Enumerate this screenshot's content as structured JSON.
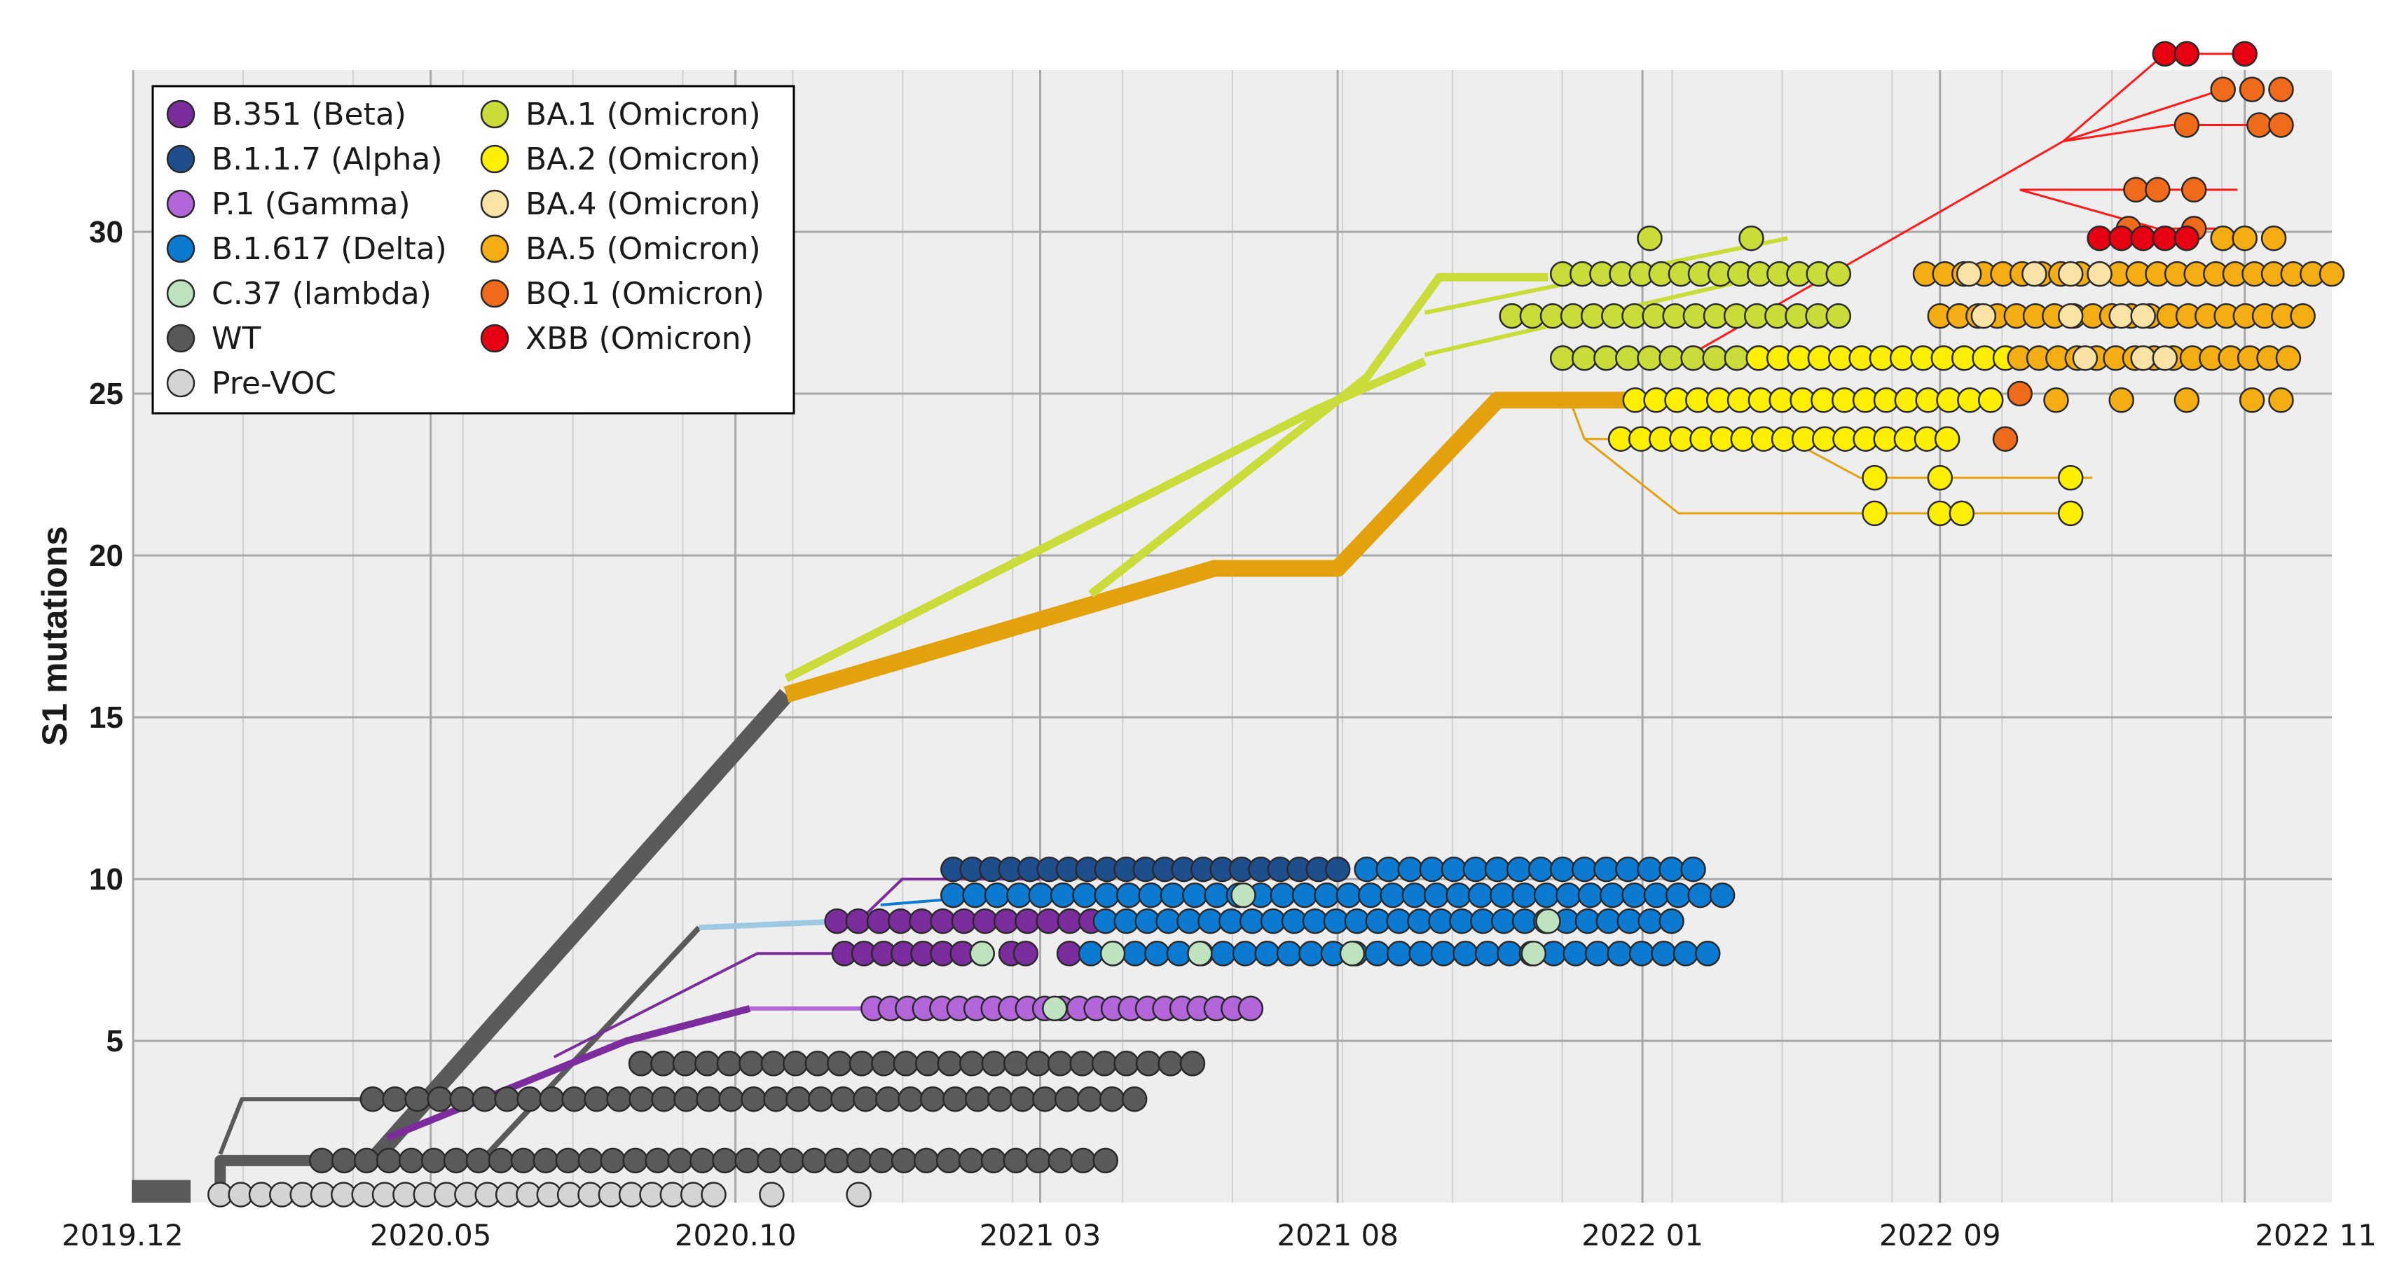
{
  "chart_data": {
    "type": "scatter",
    "title": "",
    "xlabel": "",
    "ylabel": "S1 mutations",
    "xlim": [
      2019.92,
      2022.95
    ],
    "ylim": [
      0,
      35
    ],
    "grid": true,
    "xticks": [
      {
        "label": "2019.12",
        "value": 2019.92
      },
      {
        "label": "2020.05",
        "value": 2020.33
      },
      {
        "label": "2020.10",
        "value": 2020.75
      },
      {
        "label": "2021 03",
        "value": 2021.17
      },
      {
        "label": "2021 08",
        "value": 2021.58
      },
      {
        "label": "2022 01",
        "value": 2022.0
      },
      {
        "label": "2022 09",
        "value": 2022.41
      },
      {
        "label": "2022 11",
        "value": 2022.83
      }
    ],
    "yticks": [
      5,
      10,
      15,
      20,
      25,
      30
    ],
    "legend_position": "top-left",
    "legend": [
      {
        "name": "B.351 (Beta)",
        "color": "#7b2d9e"
      },
      {
        "name": "B.1.1.7 (Alpha)",
        "color": "#1f4e8c"
      },
      {
        "name": "P.1 (Gamma)",
        "color": "#b366d9"
      },
      {
        "name": "B.1.617 (Delta)",
        "color": "#0d7ad1"
      },
      {
        "name": "C.37 (lambda)",
        "color": "#bfe3bf"
      },
      {
        "name": "WT",
        "color": "#595959"
      },
      {
        "name": "Pre-VOC",
        "color": "#d4d4d4"
      },
      {
        "name": "BA.1 (Omicron)",
        "color": "#c9dc3a"
      },
      {
        "name": "BA.2 (Omicron)",
        "color": "#ffef00"
      },
      {
        "name": "BA.4 (Omicron)",
        "color": "#fbe3a6"
      },
      {
        "name": "BA.5 (Omicron)",
        "color": "#f5ad14"
      },
      {
        "name": "BQ.1 (Omicron)",
        "color": "#f06a1c"
      },
      {
        "name": "XBB (Omicron)",
        "color": "#e60012"
      }
    ],
    "lineages": [
      {
        "name": "WT trunk",
        "color": "#5a5a5a",
        "width": 16,
        "points": [
          [
            2020.04,
            0.2
          ],
          [
            2020.04,
            1.3
          ],
          [
            2020.2,
            1.3
          ]
        ]
      },
      {
        "name": "WT to Omicron",
        "color": "#5a5a5a",
        "width": 24,
        "points": [
          [
            2020.25,
            1.3
          ],
          [
            2020.82,
            15.7
          ]
        ]
      },
      {
        "name": "WT branch 3",
        "color": "#5a5a5a",
        "width": 6,
        "points": [
          [
            2020.04,
            1.5
          ],
          [
            2020.07,
            3.2
          ],
          [
            2020.25,
            3.2
          ]
        ]
      },
      {
        "name": "WT to Alpha",
        "color": "#5a5a5a",
        "width": 8,
        "points": [
          [
            2020.4,
            1.3
          ],
          [
            2020.7,
            8.5
          ]
        ]
      },
      {
        "name": "Beta stem",
        "color": "#7b2d9e",
        "width": 10,
        "points": [
          [
            2020.27,
            2.0
          ],
          [
            2020.6,
            5.0
          ],
          [
            2020.77,
            6.0
          ]
        ]
      },
      {
        "name": "Beta branch",
        "color": "#7b2d9e",
        "width": 4,
        "points": [
          [
            2020.5,
            4.5
          ],
          [
            2020.78,
            7.7
          ],
          [
            2020.94,
            7.7
          ]
        ]
      },
      {
        "name": "Gamma",
        "color": "#b366d9",
        "width": 6,
        "points": [
          [
            2020.77,
            6.0
          ],
          [
            2020.94,
            6.0
          ]
        ]
      },
      {
        "name": "Alpha lead",
        "color": "#9ecae1",
        "width": 8,
        "points": [
          [
            2020.7,
            8.5
          ],
          [
            2020.9,
            8.7
          ]
        ]
      },
      {
        "name": "Beta to Delta",
        "color": "#7b2d9e",
        "width": 4,
        "points": [
          [
            2020.92,
            8.7
          ],
          [
            2020.98,
            10.0
          ],
          [
            2021.17,
            10.0
          ]
        ]
      },
      {
        "name": "Delta lead",
        "color": "#0d7ad1",
        "width": 4,
        "points": [
          [
            2020.95,
            9.2
          ],
          [
            2021.17,
            9.6
          ]
        ]
      },
      {
        "name": "Omicron trunk (BA.2/BA.5)",
        "color": "#e4a10e",
        "width": 24,
        "points": [
          [
            2020.82,
            15.7
          ],
          [
            2021.41,
            19.6
          ],
          [
            2021.58,
            19.6
          ],
          [
            2021.8,
            24.8
          ],
          [
            2021.99,
            24.8
          ]
        ]
      },
      {
        "name": "BA.1 arm",
        "color": "#c9dc3a",
        "width": 12,
        "points": [
          [
            2020.82,
            16.2
          ],
          [
            2021.55,
            24.5
          ],
          [
            2021.7,
            26.0
          ]
        ]
      },
      {
        "name": "BA.1 arm 2",
        "color": "#c9dc3a",
        "width": 12,
        "points": [
          [
            2021.24,
            18.8
          ],
          [
            2021.62,
            25.5
          ],
          [
            2021.72,
            28.6
          ],
          [
            2021.87,
            28.6
          ]
        ]
      },
      {
        "name": "BA.1 sub 1",
        "color": "#c9dc3a",
        "width": 6,
        "points": [
          [
            2021.7,
            27.5
          ],
          [
            2022.2,
            29.8
          ]
        ]
      },
      {
        "name": "BA.1 sub 2",
        "color": "#c9dc3a",
        "width": 6,
        "points": [
          [
            2021.7,
            26.2
          ],
          [
            2022.2,
            28.8
          ]
        ]
      },
      {
        "name": "BA.2 splits",
        "color": "#e4a10e",
        "width": 3,
        "points": [
          [
            2021.9,
            24.8
          ],
          [
            2021.92,
            23.6
          ],
          [
            2022.2,
            23.6
          ],
          [
            2022.3,
            22.4
          ],
          [
            2022.62,
            22.4
          ]
        ]
      },
      {
        "name": "BA.2 split 2",
        "color": "#e4a10e",
        "width": 3,
        "points": [
          [
            2021.92,
            23.6
          ],
          [
            2022.05,
            21.3
          ],
          [
            2022.58,
            21.3
          ]
        ]
      },
      {
        "name": "XBB tree",
        "color": "#ff1a1a",
        "width": 3,
        "points": [
          [
            2022.05,
            26.0
          ],
          [
            2022.58,
            32.8
          ],
          [
            2022.8,
            34.4
          ]
        ]
      },
      {
        "name": "XBB split a",
        "color": "#ff1a1a",
        "width": 3,
        "points": [
          [
            2022.58,
            32.8
          ],
          [
            2022.72,
            35.5
          ],
          [
            2022.82,
            35.5
          ]
        ]
      },
      {
        "name": "XBB split b",
        "color": "#ff1a1a",
        "width": 3,
        "points": [
          [
            2022.58,
            32.8
          ],
          [
            2022.73,
            33.3
          ],
          [
            2022.85,
            33.3
          ]
        ]
      },
      {
        "name": "XBB split c",
        "color": "#ff1a1a",
        "width": 3,
        "points": [
          [
            2022.52,
            31.3
          ],
          [
            2022.82,
            31.3
          ]
        ]
      },
      {
        "name": "XBB split d",
        "color": "#ff1a1a",
        "width": 3,
        "points": [
          [
            2022.52,
            31.3
          ],
          [
            2022.71,
            30.1
          ],
          [
            2022.8,
            30.1
          ]
        ]
      }
    ],
    "series": [
      {
        "name": "Pre-VOC",
        "color": "#d4d4d4",
        "y": 0.25,
        "x_start": 2020.04,
        "x_end": 2020.72,
        "count": 25
      },
      {
        "name": "Pre-VOC extra",
        "color": "#d4d4d4",
        "y": 0.25,
        "x_values": [
          2020.8,
          2020.92
        ]
      },
      {
        "name": "WT",
        "color": "#5a5a5a",
        "y": 1.3,
        "x_start": 2020.18,
        "x_end": 2021.26,
        "count": 36
      },
      {
        "name": "WT",
        "color": "#5a5a5a",
        "y": 3.2,
        "x_start": 2020.25,
        "x_end": 2021.3,
        "count": 35
      },
      {
        "name": "WT",
        "color": "#5a5a5a",
        "y": 4.3,
        "x_start": 2020.62,
        "x_end": 2021.38,
        "count": 26
      },
      {
        "name": "B.351 (Beta)",
        "color": "#7b2d9e",
        "y": 8.7,
        "x_start": 2020.89,
        "x_end": 2021.24,
        "count": 13
      },
      {
        "name": "B.351 (Beta)",
        "color": "#7b2d9e",
        "y": 7.7,
        "x_start": 2020.9,
        "x_end": 2021.09,
        "count": 8
      },
      {
        "name": "B.351 (Beta)",
        "color": "#7b2d9e",
        "y": 7.7,
        "x_values": [
          2021.13,
          2021.15,
          2021.21
        ]
      },
      {
        "name": "P.1 (Gamma)",
        "color": "#b366d9",
        "y": 6.0,
        "x_start": 2020.94,
        "x_end": 2021.46,
        "count": 23
      },
      {
        "name": "B.1.1.7 (Alpha)",
        "color": "#1f4e8c",
        "y": 10.3,
        "x_start": 2021.05,
        "x_end": 2021.58,
        "count": 21
      },
      {
        "name": "B.1.617 (Delta)",
        "color": "#0d7ad1",
        "y": 9.5,
        "x_start": 2021.05,
        "x_end": 2022.11,
        "count": 36
      },
      {
        "name": "B.1.617 (Delta)",
        "color": "#0d7ad1",
        "y": 10.3,
        "x_start": 2021.62,
        "x_end": 2022.07,
        "count": 16
      },
      {
        "name": "B.1.617 (Delta)",
        "color": "#0d7ad1",
        "y": 8.7,
        "x_start": 2021.26,
        "x_end": 2022.04,
        "count": 28
      },
      {
        "name": "B.1.617 (Delta)",
        "color": "#0d7ad1",
        "y": 7.7,
        "x_start": 2021.24,
        "x_end": 2022.09,
        "count": 29
      },
      {
        "name": "C.37 (lambda)",
        "color": "#bfe3bf",
        "y": 9.5,
        "x_values": [
          2021.45
        ]
      },
      {
        "name": "C.37 (lambda)",
        "color": "#bfe3bf",
        "y": 8.7,
        "x_values": [
          2021.87
        ]
      },
      {
        "name": "C.37 (lambda)",
        "color": "#bfe3bf",
        "y": 7.7,
        "x_values": [
          2021.09,
          2021.27,
          2021.39,
          2021.6,
          2021.85
        ]
      },
      {
        "name": "C.37 (lambda)",
        "color": "#bfe3bf",
        "y": 6.0,
        "x_values": [
          2021.19
        ]
      },
      {
        "name": "BA.1 (Omicron)",
        "color": "#c9dc3a",
        "y": 28.7,
        "x_start": 2021.89,
        "x_end": 2022.27,
        "count": 15
      },
      {
        "name": "BA.1 (Omicron)",
        "color": "#c9dc3a",
        "y": 27.4,
        "x_start": 2021.82,
        "x_end": 2022.27,
        "count": 17
      },
      {
        "name": "BA.1 (Omicron)",
        "color": "#c9dc3a",
        "y": 26.1,
        "x_start": 2021.89,
        "x_end": 2022.16,
        "count": 10
      },
      {
        "name": "BA.1 (Omicron)",
        "color": "#c9dc3a",
        "y": 29.8,
        "x_values": [
          2022.01,
          2022.15
        ]
      },
      {
        "name": "BA.2 (Omicron)",
        "color": "#ffef00",
        "y": 26.1,
        "x_start": 2022.16,
        "x_end": 2022.5,
        "count": 13
      },
      {
        "name": "BA.2 (Omicron)",
        "color": "#ffef00",
        "y": 24.8,
        "x_start": 2021.99,
        "x_end": 2022.48,
        "count": 18
      },
      {
        "name": "BA.2 (Omicron)",
        "color": "#ffef00",
        "y": 23.6,
        "x_start": 2021.97,
        "x_end": 2022.42,
        "count": 17
      },
      {
        "name": "BA.2 (Omicron)",
        "color": "#ffef00",
        "y": 22.4,
        "x_values": [
          2022.32,
          2022.41,
          2022.59
        ]
      },
      {
        "name": "BA.2 (Omicron)",
        "color": "#ffef00",
        "y": 21.3,
        "x_values": [
          2022.32,
          2022.41,
          2022.44,
          2022.59
        ]
      },
      {
        "name": "BA.5 (Omicron)",
        "color": "#f5ad14",
        "y": 28.7,
        "x_start": 2022.39,
        "x_end": 2022.95,
        "count": 22
      },
      {
        "name": "BA.5 (Omicron)",
        "color": "#f5ad14",
        "y": 27.4,
        "x_start": 2022.41,
        "x_end": 2022.91,
        "count": 20
      },
      {
        "name": "BA.5 (Omicron)",
        "color": "#f5ad14",
        "y": 26.1,
        "x_start": 2022.52,
        "x_end": 2022.89,
        "count": 15
      },
      {
        "name": "BA.5 (Omicron)",
        "color": "#f5ad14",
        "y": 24.8,
        "x_values": [
          2022.57,
          2022.66,
          2022.75,
          2022.84,
          2022.88
        ]
      },
      {
        "name": "BA.5 (Omicron)",
        "color": "#f5ad14",
        "y": 29.8,
        "x_values": [
          2022.8,
          2022.83,
          2022.87
        ]
      },
      {
        "name": "BA.4 (Omicron)",
        "color": "#fbe3a6",
        "y": 28.7,
        "x_values": [
          2022.45,
          2022.54,
          2022.59,
          2022.63
        ]
      },
      {
        "name": "BA.4 (Omicron)",
        "color": "#fbe3a6",
        "y": 27.4,
        "x_values": [
          2022.47,
          2022.59,
          2022.66,
          2022.69
        ]
      },
      {
        "name": "BA.4 (Omicron)",
        "color": "#fbe3a6",
        "y": 26.1,
        "x_values": [
          2022.61,
          2022.69,
          2022.72
        ]
      },
      {
        "name": "BQ.1 (Omicron)",
        "color": "#f06a1c",
        "y": 34.4,
        "x_values": [
          2022.8,
          2022.84,
          2022.88
        ]
      },
      {
        "name": "BQ.1 (Omicron)",
        "color": "#f06a1c",
        "y": 33.3,
        "x_values": [
          2022.75,
          2022.85,
          2022.88
        ]
      },
      {
        "name": "BQ.1 (Omicron)",
        "color": "#f06a1c",
        "y": 31.3,
        "x_values": [
          2022.68,
          2022.71,
          2022.76
        ]
      },
      {
        "name": "BQ.1 (Omicron)",
        "color": "#f06a1c",
        "y": 30.1,
        "x_values": [
          2022.67,
          2022.76
        ]
      },
      {
        "name": "BQ.1 (Omicron)",
        "color": "#f06a1c",
        "y": 25.0,
        "x_values": [
          2022.52
        ]
      },
      {
        "name": "BQ.1 (Omicron)",
        "color": "#f06a1c",
        "y": 23.6,
        "x_values": [
          2022.5
        ]
      },
      {
        "name": "XBB (Omicron)",
        "color": "#e60012",
        "y": 35.5,
        "x_values": [
          2022.72,
          2022.75,
          2022.83
        ]
      },
      {
        "name": "XBB (Omicron)",
        "color": "#e60012",
        "y": 29.8,
        "x_start": 2022.63,
        "x_end": 2022.75,
        "count": 5
      }
    ]
  }
}
